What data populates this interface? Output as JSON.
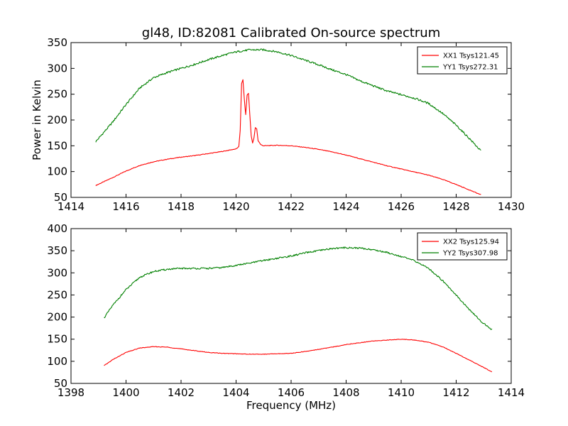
{
  "title": "gl48, ID:82081 Calibrated On-source spectrum",
  "chart_data": [
    {
      "type": "line",
      "ylabel": "Power in Kelvin",
      "xlabel": "",
      "xlim": [
        1414,
        1430
      ],
      "ylim": [
        50,
        350
      ],
      "xticks": [
        1414,
        1416,
        1418,
        1420,
        1422,
        1424,
        1426,
        1428,
        1430
      ],
      "yticks": [
        50,
        100,
        150,
        200,
        250,
        300,
        350
      ],
      "legend_position": "top-right",
      "grid": false,
      "series": [
        {
          "name": "XX1 Tsys121.45",
          "color": "#ff0000",
          "x": [
            1414.9,
            1415.5,
            1416.0,
            1416.5,
            1417.0,
            1417.5,
            1418.0,
            1418.5,
            1419.0,
            1419.5,
            1420.0,
            1420.1,
            1420.15,
            1420.2,
            1420.25,
            1420.3,
            1420.35,
            1420.4,
            1420.45,
            1420.5,
            1420.55,
            1420.6,
            1420.65,
            1420.7,
            1420.75,
            1420.8,
            1420.9,
            1421.0,
            1421.5,
            1422.0,
            1422.5,
            1423.0,
            1423.5,
            1424.0,
            1424.5,
            1425.0,
            1425.5,
            1426.0,
            1426.5,
            1427.0,
            1427.5,
            1428.0,
            1428.5,
            1428.9
          ],
          "y": [
            73,
            88,
            101,
            112,
            119,
            124,
            128,
            131,
            135,
            139,
            144,
            148,
            180,
            270,
            278,
            240,
            210,
            248,
            252,
            210,
            170,
            155,
            165,
            185,
            183,
            160,
            152,
            150,
            151,
            150,
            147,
            143,
            138,
            132,
            125,
            118,
            111,
            105,
            99,
            93,
            85,
            75,
            64,
            55
          ]
        },
        {
          "name": "YY1 Tsys272.31",
          "color": "#008000",
          "x": [
            1414.9,
            1415.5,
            1416.0,
            1416.5,
            1417.0,
            1417.5,
            1418.0,
            1418.5,
            1419.0,
            1419.5,
            1420.0,
            1420.5,
            1421.0,
            1421.5,
            1422.0,
            1422.5,
            1423.0,
            1423.5,
            1424.0,
            1424.5,
            1425.0,
            1425.5,
            1426.0,
            1426.5,
            1427.0,
            1427.5,
            1428.0,
            1428.5,
            1428.9
          ],
          "y": [
            158,
            195,
            230,
            262,
            282,
            292,
            300,
            308,
            317,
            325,
            332,
            336,
            336,
            332,
            325,
            316,
            307,
            297,
            288,
            276,
            266,
            256,
            249,
            242,
            232,
            213,
            190,
            163,
            140
          ]
        }
      ]
    },
    {
      "type": "line",
      "ylabel": "",
      "xlabel": "Frequency (MHz)",
      "xlim": [
        1398,
        1414
      ],
      "ylim": [
        50,
        400
      ],
      "xticks": [
        1398,
        1400,
        1402,
        1404,
        1406,
        1408,
        1410,
        1412,
        1414
      ],
      "yticks": [
        50,
        100,
        150,
        200,
        250,
        300,
        350,
        400
      ],
      "legend_position": "top-right",
      "grid": false,
      "series": [
        {
          "name": "XX2 Tsys125.94",
          "color": "#ff0000",
          "x": [
            1399.2,
            1399.5,
            1400.0,
            1400.5,
            1401.0,
            1401.5,
            1402.0,
            1402.5,
            1403.0,
            1403.5,
            1404.0,
            1404.5,
            1405.0,
            1405.5,
            1406.0,
            1406.5,
            1407.0,
            1407.5,
            1408.0,
            1408.5,
            1409.0,
            1409.5,
            1410.0,
            1410.5,
            1411.0,
            1411.5,
            1412.0,
            1412.5,
            1413.0,
            1413.3
          ],
          "y": [
            90,
            103,
            120,
            130,
            133,
            132,
            128,
            124,
            120,
            118,
            117,
            116,
            116,
            117,
            118,
            122,
            127,
            132,
            138,
            142,
            146,
            148,
            150,
            148,
            143,
            133,
            118,
            102,
            86,
            76
          ]
        },
        {
          "name": "YY2 Tsys307.98",
          "color": "#008000",
          "x": [
            1399.2,
            1399.5,
            1400.0,
            1400.5,
            1401.0,
            1401.5,
            1402.0,
            1402.5,
            1403.0,
            1403.5,
            1404.0,
            1404.5,
            1405.0,
            1405.5,
            1406.0,
            1406.5,
            1407.0,
            1407.5,
            1408.0,
            1408.5,
            1409.0,
            1409.5,
            1410.0,
            1410.5,
            1411.0,
            1411.5,
            1412.0,
            1412.5,
            1413.0,
            1413.3
          ],
          "y": [
            198,
            225,
            262,
            290,
            303,
            308,
            310,
            310,
            310,
            312,
            317,
            322,
            328,
            333,
            338,
            345,
            350,
            355,
            357,
            356,
            352,
            346,
            337,
            327,
            310,
            283,
            250,
            215,
            185,
            172
          ]
        }
      ]
    }
  ]
}
